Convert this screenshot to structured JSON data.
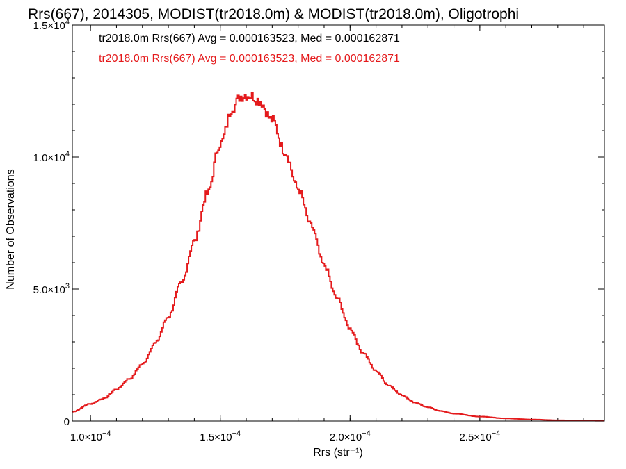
{
  "chart_data": {
    "type": "line",
    "style": "step-histogram",
    "title": "Rrs(667), 2014305, MODIST(tr2018.0m) & MODIST(tr2018.0m), Oligotrophi",
    "xlabel": "Rrs (str⁻¹)",
    "ylabel": "Number of Observations",
    "xlim": [
      9.3e-05,
      0.000298
    ],
    "ylim": [
      0,
      15000
    ],
    "x_ticks": [
      {
        "value": 0.0001,
        "mant": "1.0×10",
        "exp": "−4"
      },
      {
        "value": 0.00015,
        "mant": "1.5×10",
        "exp": "−4"
      },
      {
        "value": 0.0002,
        "mant": "2.0×10",
        "exp": "−4"
      },
      {
        "value": 0.00025,
        "mant": "2.5×10",
        "exp": "−4"
      }
    ],
    "y_ticks": [
      {
        "value": 0,
        "mant": "0",
        "exp": ""
      },
      {
        "value": 5000,
        "mant": "5.0×10",
        "exp": "3"
      },
      {
        "value": 10000,
        "mant": "1.0×10",
        "exp": "4"
      },
      {
        "value": 15000,
        "mant": "1.5×10",
        "exp": "4"
      }
    ],
    "legend": [
      {
        "text": "tr2018.0m Rrs(667) Avg = 0.000163523, Med = 0.000162871",
        "color": "#000000"
      },
      {
        "text": "tr2018.0m Rrs(667) Avg = 0.000163523, Med = 0.000162871",
        "color": "#e41a1c"
      }
    ],
    "legend_position": "top-left",
    "series": [
      {
        "color": "#e41a1c",
        "x": [
          9.3e-05,
          0.0001,
          0.000105,
          0.00011,
          0.000115,
          0.00012,
          0.000125,
          0.00013,
          0.000135,
          0.00014,
          0.000145,
          0.00015,
          0.000155,
          0.000158,
          0.00016,
          0.000162,
          0.000165,
          0.00017,
          0.000175,
          0.00018,
          0.000185,
          0.00019,
          0.000195,
          0.0002,
          0.000205,
          0.00021,
          0.000215,
          0.00022,
          0.000225,
          0.00023,
          0.000235,
          0.00024,
          0.00025,
          0.00026,
          0.00027,
          0.00028,
          0.00029,
          0.000298
        ],
        "y": [
          350,
          650,
          850,
          1200,
          1600,
          2150,
          2950,
          3950,
          5200,
          6800,
          8600,
          10500,
          11900,
          12300,
          12350,
          12320,
          12150,
          11400,
          10200,
          8800,
          7400,
          5900,
          4650,
          3500,
          2600,
          1900,
          1350,
          980,
          700,
          520,
          380,
          280,
          170,
          100,
          60,
          30,
          15,
          10
        ]
      }
    ]
  }
}
